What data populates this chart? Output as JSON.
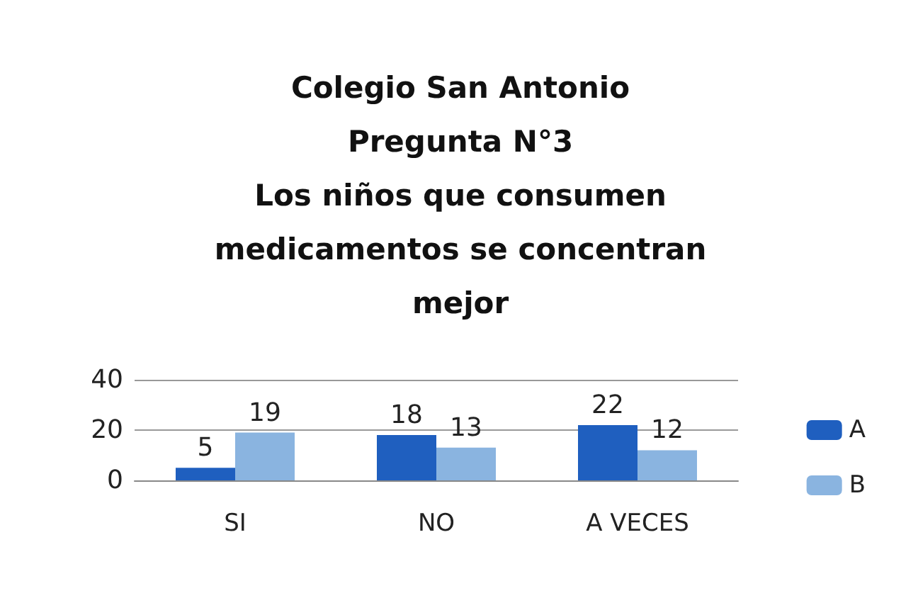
{
  "chart_data": {
    "type": "bar",
    "title": "Colegio San Antonio\nPregunta N°3\nLos niños que consumen\nmedicamentos se concentran\nmejor",
    "categories": [
      "SI",
      "NO",
      "A VECES"
    ],
    "series": [
      {
        "name": "A",
        "color": "#1f5fbf",
        "values": [
          5,
          18,
          22
        ]
      },
      {
        "name": "B",
        "color": "#8ab4e0",
        "values": [
          19,
          13,
          12
        ]
      }
    ],
    "ylim": [
      0,
      40
    ],
    "yticks": [
      0,
      20,
      40
    ],
    "grid": "y",
    "legend": "right",
    "data_labels": true
  }
}
